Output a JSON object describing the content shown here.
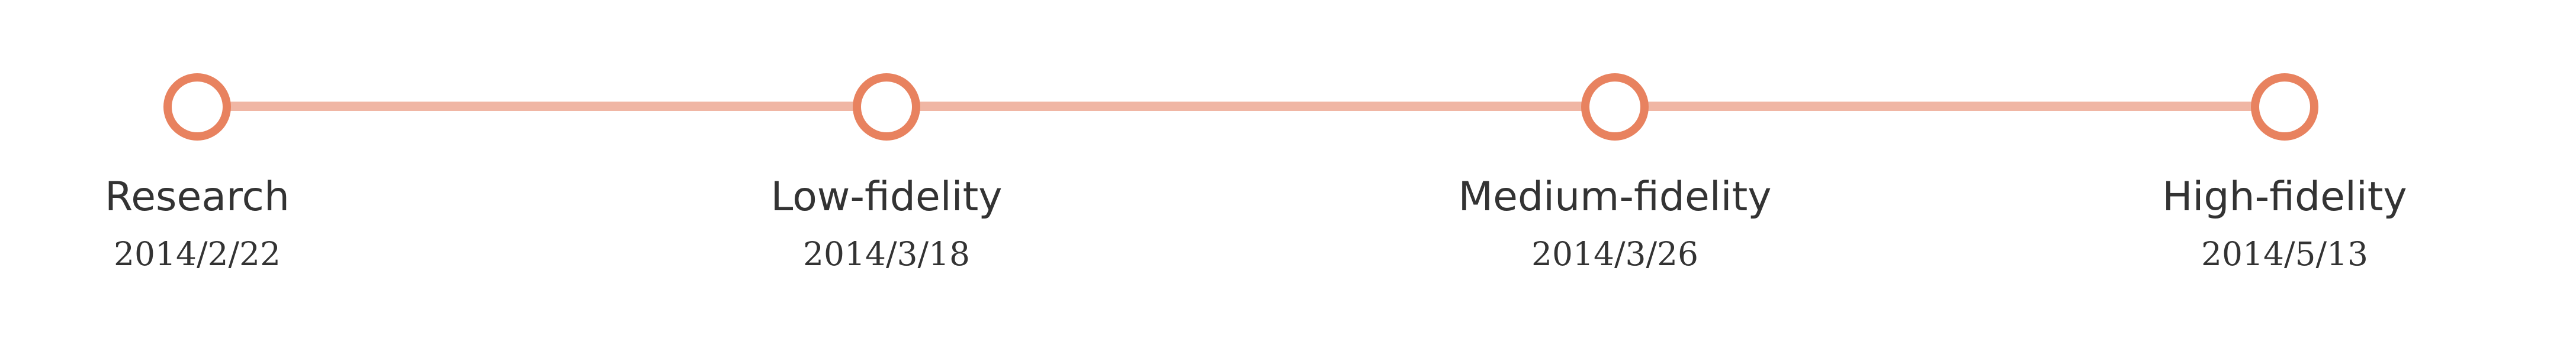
{
  "colors": {
    "track": "#f0b6a4",
    "node_ring": "#e8825f",
    "node_fill": "#ffffff",
    "text": "#333333"
  },
  "stages": [
    {
      "title": "Research",
      "date": "2014/2/22"
    },
    {
      "title": "Low-fidelity",
      "date": "2014/3/18"
    },
    {
      "title": "Medium-fidelity",
      "date": "2014/3/26"
    },
    {
      "title": "High-fidelity",
      "date": "2014/5/13"
    }
  ]
}
